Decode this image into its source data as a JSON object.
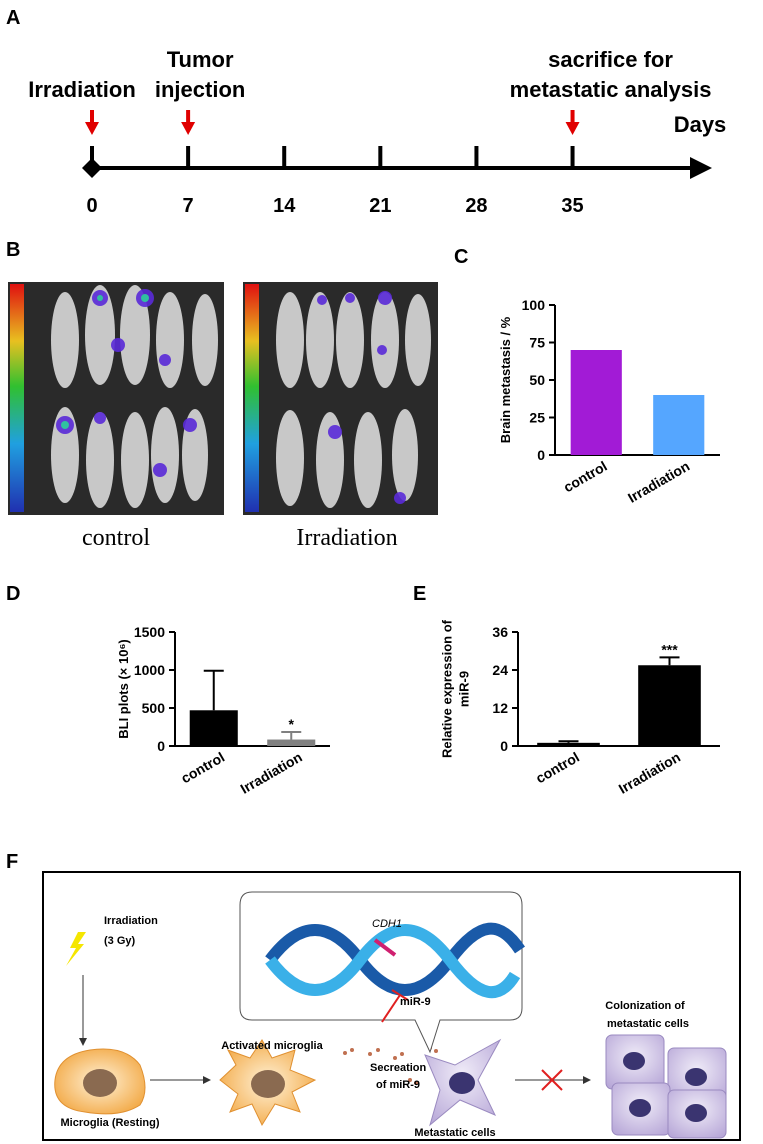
{
  "panel_a": {
    "label": "A",
    "axis_label": "Days",
    "ticks": [
      0,
      7,
      14,
      21,
      28,
      35
    ],
    "events": [
      {
        "day": 0,
        "lines": [
          "Irradiation"
        ]
      },
      {
        "day": 7,
        "lines": [
          "Tumor",
          "injection"
        ]
      },
      {
        "day": 35,
        "lines": [
          "sacrifice for",
          "metastatic analysis"
        ]
      }
    ]
  },
  "panel_b": {
    "label": "B",
    "groups": [
      "control",
      "Irradiation"
    ]
  },
  "chart_data": [
    {
      "panel_label": "C",
      "type": "bar",
      "y_label": [
        "Brain metastasis / %"
      ],
      "categories": [
        "control",
        "Irradiation"
      ],
      "values": [
        70,
        40
      ],
      "colors": [
        "#a21bd6",
        "#55a6ff"
      ],
      "ylim": [
        0,
        100
      ],
      "yticks": [
        0,
        25,
        50,
        75,
        100
      ]
    },
    {
      "panel_label": "D",
      "type": "bar",
      "y_label": [
        "BLI plots (× 10⁶)"
      ],
      "categories": [
        "control",
        "Irradiation"
      ],
      "values": [
        470,
        85
      ],
      "errors": [
        520,
        100
      ],
      "annotations": [
        null,
        "*"
      ],
      "colors": [
        "#000000",
        "#808080"
      ],
      "ylim": [
        0,
        1500
      ],
      "yticks": [
        0,
        500,
        1000,
        1500
      ]
    },
    {
      "panel_label": "E",
      "type": "bar",
      "y_label": [
        "Relative expression of",
        "miR-9"
      ],
      "categories": [
        "control",
        "Irradiation"
      ],
      "values": [
        1,
        25.5
      ],
      "errors": [
        0.5,
        2.5
      ],
      "annotations": [
        null,
        "***"
      ],
      "colors": [
        "#000000",
        "#000000"
      ],
      "ylim": [
        0,
        36
      ],
      "yticks": [
        0,
        12,
        24,
        36
      ]
    }
  ],
  "panel_f": {
    "label": "F",
    "irradiation": [
      "Irradiation",
      "(3 Gy)"
    ],
    "activated": "Activated microglia",
    "resting": "Microglia (Resting)",
    "secretion": [
      "Secreation",
      "of miR-9"
    ],
    "metastatic": "Metastatic cells",
    "colonization": [
      "Colonization of",
      "metastatic cells"
    ],
    "gene": "CDH1",
    "mirna": "miR-9"
  }
}
